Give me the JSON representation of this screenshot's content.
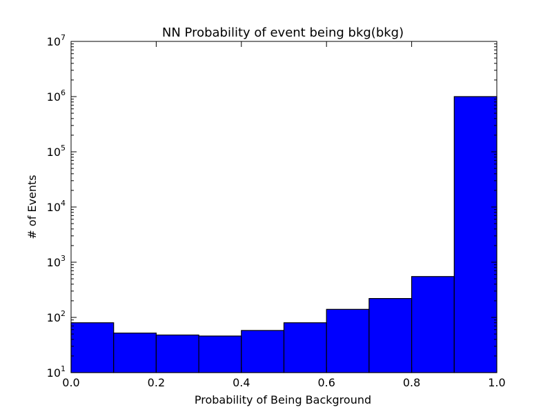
{
  "chart_data": {
    "type": "bar",
    "title": "NN Probability of event being bkg(bkg)",
    "xlabel": "Probability of Being Background",
    "ylabel": "# of Events",
    "yscale": "log",
    "grid": false,
    "xlim": [
      0.0,
      1.0
    ],
    "ylim": [
      10,
      10000000
    ],
    "bin_edges": [
      0.0,
      0.1,
      0.2,
      0.3,
      0.4,
      0.5,
      0.6,
      0.7,
      0.8,
      0.9,
      1.0
    ],
    "values": [
      80,
      52,
      48,
      46,
      58,
      80,
      140,
      220,
      550,
      1000000
    ],
    "bar_color": "#0000ff",
    "edge_color": "#000000",
    "x_ticks": [
      "0.0",
      "0.2",
      "0.4",
      "0.6",
      "0.8",
      "1.0"
    ],
    "y_ticks": [
      {
        "base": "10",
        "exp": "1"
      },
      {
        "base": "10",
        "exp": "2"
      },
      {
        "base": "10",
        "exp": "3"
      },
      {
        "base": "10",
        "exp": "4"
      },
      {
        "base": "10",
        "exp": "5"
      },
      {
        "base": "10",
        "exp": "6"
      },
      {
        "base": "10",
        "exp": "7"
      }
    ]
  }
}
